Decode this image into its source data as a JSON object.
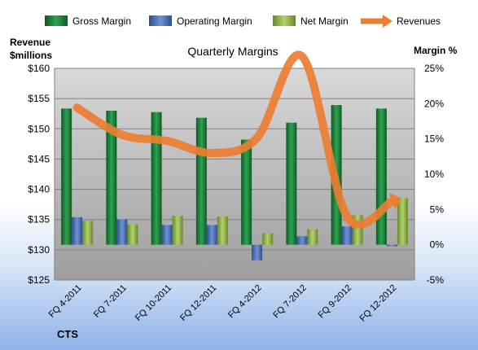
{
  "chart_data": {
    "type": "bar",
    "title": "Quarterly Margins",
    "ylabel_left": "Revenue\n$millions",
    "ylabel_right": "Margin %",
    "footer": "CTS",
    "categories": [
      "FQ 4-2011",
      "FQ 7-2011",
      "FQ 10-2011",
      "FQ 12-2011",
      "FQ 4-2012",
      "FQ 7-2012",
      "FQ 9-2012",
      "FQ 12-2012"
    ],
    "y_left": {
      "min": 125,
      "max": 160,
      "ticks": [
        "$125",
        "$130",
        "$135",
        "$140",
        "$145",
        "$150",
        "$155",
        "$160"
      ]
    },
    "y_right": {
      "min": -5,
      "max": 25,
      "ticks": [
        "-5%",
        "0%",
        "5%",
        "10%",
        "15%",
        "20%",
        "25%"
      ]
    },
    "series": [
      {
        "name": "Gross Margin",
        "type": "bar",
        "axis": "right",
        "color": "#1f7a3a",
        "values": [
          19.3,
          19.0,
          18.8,
          18.0,
          14.9,
          17.3,
          19.8,
          19.3
        ]
      },
      {
        "name": "Operating Margin",
        "type": "bar",
        "axis": "right",
        "color": "#4a6fb3",
        "values": [
          3.9,
          3.6,
          2.8,
          2.8,
          -2.2,
          1.2,
          2.6,
          -0.2
        ]
      },
      {
        "name": "Net Margin",
        "type": "bar",
        "axis": "right",
        "color": "#8db34a",
        "values": [
          3.4,
          2.9,
          4.1,
          4.0,
          1.6,
          2.2,
          4.2,
          6.6
        ]
      },
      {
        "name": "Revenues",
        "type": "line",
        "axis": "left",
        "color": "#ed7d31",
        "values": [
          153.5,
          149.0,
          148.0,
          146.0,
          148.5,
          162.0,
          135.5,
          138.0
        ]
      }
    ],
    "grid": true,
    "legend_position": "top"
  }
}
